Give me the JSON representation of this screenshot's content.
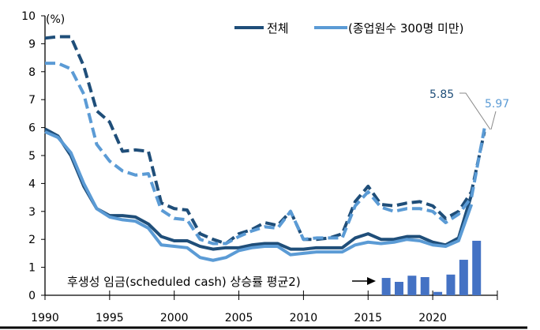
{
  "chart_data": {
    "type": "line",
    "ylabel": "(%)",
    "ylim": [
      0,
      10
    ],
    "xlim": [
      1990,
      2025
    ],
    "yticks": [
      "0",
      "1",
      "2",
      "3",
      "4",
      "5",
      "6",
      "7",
      "8",
      "9",
      "10"
    ],
    "xticks": [
      "1990",
      "1995",
      "2000",
      "2005",
      "2010",
      "2015",
      "2020"
    ],
    "grid": false,
    "legend": {
      "placement": "top-right",
      "entries": [
        "전체",
        "(종업원수 300명 미만)"
      ]
    },
    "colors": {
      "dark": "#1f4e79",
      "light": "#5b9bd5",
      "bars": "#4472c4"
    },
    "series": [
      {
        "name": "전체",
        "style": "solid",
        "color": "#1f4e79",
        "x": [
          1990,
          1991,
          1992,
          1993,
          1994,
          1995,
          1996,
          1997,
          1998,
          1999,
          2000,
          2001,
          2002,
          2003,
          2004,
          2005,
          2006,
          2007,
          2008,
          2009,
          2010,
          2011,
          2012,
          2013,
          2014,
          2015,
          2016,
          2017,
          2018,
          2019,
          2020,
          2021,
          2022,
          2023
        ],
        "values": [
          5.95,
          5.7,
          5.0,
          3.9,
          3.1,
          2.85,
          2.85,
          2.8,
          2.55,
          2.1,
          1.95,
          1.95,
          1.75,
          1.65,
          1.7,
          1.7,
          1.8,
          1.85,
          1.85,
          1.65,
          1.65,
          1.7,
          1.7,
          1.7,
          2.05,
          2.2,
          2.0,
          2.0,
          2.1,
          2.1,
          1.9,
          1.8,
          2.05,
          3.6
        ]
      },
      {
        "name": "(종업원수 300명 미만)",
        "style": "solid",
        "color": "#5b9bd5",
        "x": [
          1990,
          1991,
          1992,
          1993,
          1994,
          1995,
          1996,
          1997,
          1998,
          1999,
          2000,
          2001,
          2002,
          2003,
          2004,
          2005,
          2006,
          2007,
          2008,
          2009,
          2010,
          2011,
          2012,
          2013,
          2014,
          2015,
          2016,
          2017,
          2018,
          2019,
          2020,
          2021,
          2022,
          2023
        ],
        "values": [
          5.85,
          5.65,
          5.1,
          4.0,
          3.1,
          2.8,
          2.7,
          2.65,
          2.4,
          1.8,
          1.75,
          1.7,
          1.35,
          1.25,
          1.35,
          1.6,
          1.7,
          1.75,
          1.75,
          1.45,
          1.5,
          1.55,
          1.55,
          1.55,
          1.8,
          1.9,
          1.85,
          1.9,
          2.0,
          1.95,
          1.8,
          1.75,
          1.95,
          3.25
        ]
      },
      {
        "style": "dashed",
        "color": "#1f4e79",
        "x": [
          1990,
          1991,
          1992,
          1993,
          1994,
          1995,
          1996,
          1997,
          1998,
          1999,
          2000,
          2001,
          2002,
          2003,
          2004,
          2005,
          2006,
          2007,
          2008,
          2009,
          2010,
          2011,
          2012,
          2013,
          2014,
          2015,
          2016,
          2017,
          2018,
          2019,
          2020,
          2021,
          2022,
          2023,
          2024
        ],
        "values": [
          9.2,
          9.25,
          9.25,
          8.2,
          6.6,
          6.2,
          5.15,
          5.2,
          5.15,
          3.3,
          3.1,
          3.05,
          2.2,
          2.0,
          1.85,
          2.2,
          2.35,
          2.6,
          2.5,
          3.0,
          2.0,
          2.0,
          2.05,
          2.2,
          3.35,
          3.9,
          3.25,
          3.2,
          3.3,
          3.35,
          3.2,
          2.75,
          3.0,
          3.7,
          5.85
        ]
      },
      {
        "style": "dashed",
        "color": "#5b9bd5",
        "x": [
          1990,
          1991,
          1992,
          1993,
          1994,
          1995,
          1996,
          1997,
          1998,
          1999,
          2000,
          2001,
          2002,
          2003,
          2004,
          2005,
          2006,
          2007,
          2008,
          2009,
          2010,
          2011,
          2012,
          2013,
          2014,
          2015,
          2016,
          2017,
          2018,
          2019,
          2020,
          2021,
          2022,
          2023,
          2024
        ],
        "values": [
          8.3,
          8.3,
          8.1,
          7.2,
          5.4,
          4.8,
          4.45,
          4.3,
          4.35,
          3.05,
          2.75,
          2.7,
          2.0,
          1.85,
          1.85,
          2.1,
          2.3,
          2.45,
          2.4,
          3.0,
          2.0,
          2.05,
          2.05,
          2.05,
          3.2,
          3.7,
          3.15,
          3.0,
          3.1,
          3.1,
          3.0,
          2.6,
          2.9,
          3.5,
          5.97
        ]
      }
    ],
    "bars": {
      "label": "후생성 임금(scheduled cash) 상승률 평균2)",
      "color": "#4472c4",
      "x": [
        2016,
        2017,
        2018,
        2019,
        2020,
        2021,
        2022,
        2023
      ],
      "values": [
        0.62,
        0.48,
        0.7,
        0.65,
        0.12,
        0.74,
        1.27,
        1.95
      ]
    },
    "annotations": [
      {
        "text": "5.85",
        "x": 2024,
        "y": 5.85,
        "color": "#1f4e79"
      },
      {
        "text": "5.97",
        "x": 2024,
        "y": 5.97,
        "color": "#5b9bd5"
      }
    ]
  }
}
